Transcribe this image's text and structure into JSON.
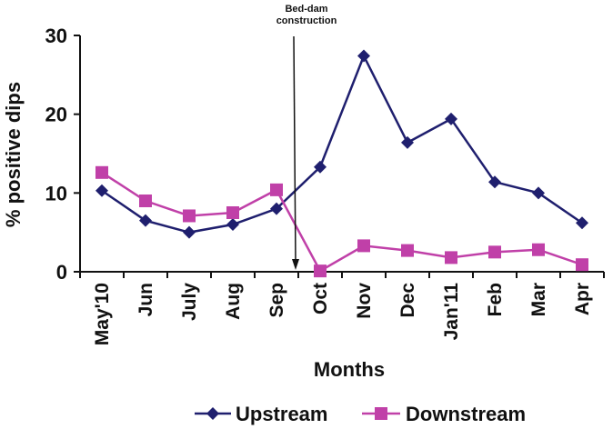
{
  "chart_data": {
    "type": "line",
    "categories": [
      "May'10",
      "Jun",
      "July",
      "Aug",
      "Sep",
      "Oct",
      "Nov",
      "Dec",
      "Jan'11",
      "Feb",
      "Mar",
      "Apr"
    ],
    "series": [
      {
        "name": "Upstream",
        "color": "#1f1f6e",
        "marker": "diamond",
        "values": [
          10.3,
          6.5,
          5.0,
          6.0,
          8.0,
          13.3,
          27.4,
          16.4,
          19.4,
          11.4,
          10.0,
          6.2
        ]
      },
      {
        "name": "Downstream",
        "color": "#c040a8",
        "marker": "square",
        "values": [
          12.6,
          9.0,
          7.1,
          7.5,
          10.4,
          0.1,
          3.3,
          2.7,
          1.8,
          2.5,
          2.8,
          0.9
        ]
      }
    ],
    "xlabel": "Months",
    "ylabel": "% positive dips",
    "ylim": [
      0,
      30
    ],
    "yticks": [
      0,
      10,
      20,
      30
    ],
    "grid": false,
    "legend": "bottom",
    "annotation": {
      "text_lines": [
        "Bed-dam",
        "construction"
      ],
      "between_categories": [
        "Sep",
        "Oct"
      ]
    }
  }
}
